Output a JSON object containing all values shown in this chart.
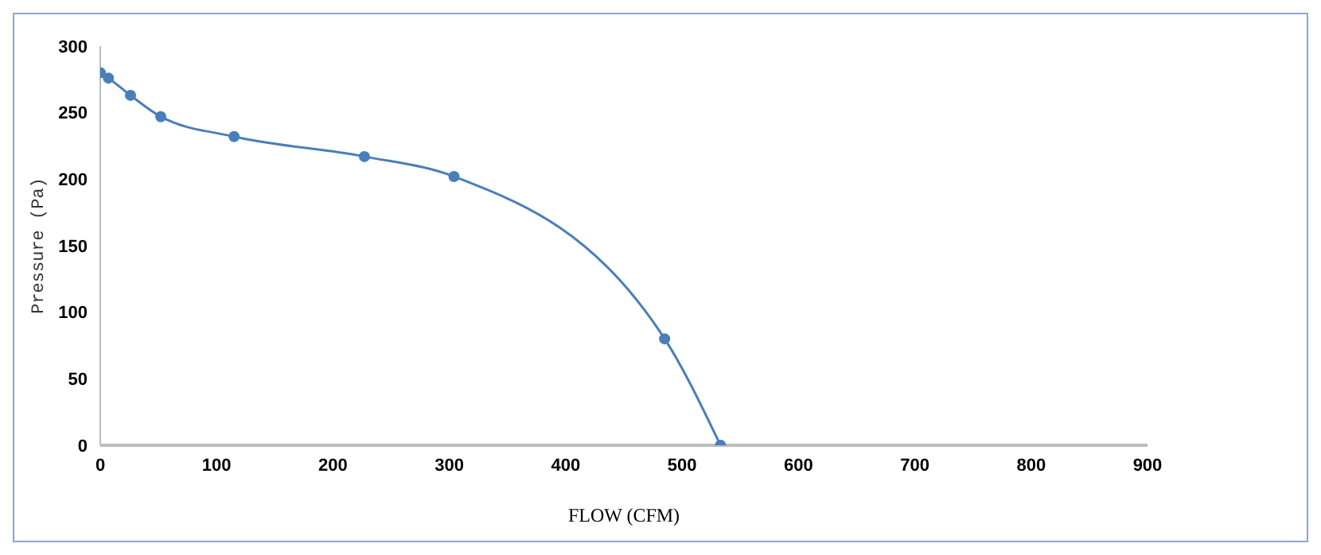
{
  "chart_data": {
    "type": "line",
    "xlabel": "FLOW (CFM)",
    "ylabel": "Pressure (Pa)",
    "x": [
      0,
      7,
      26,
      52,
      115,
      227,
      304,
      485,
      533
    ],
    "series": [
      {
        "color": "#4a7ebb",
        "values": [
          280,
          276,
          263,
          247,
          232,
          217,
          202,
          80,
          0
        ]
      }
    ],
    "xlim": [
      0,
      900
    ],
    "xticks": [
      0,
      100,
      200,
      300,
      400,
      500,
      600,
      700,
      800,
      900
    ],
    "ylim": [
      0,
      300
    ],
    "yticks": [
      0,
      50,
      100,
      150,
      200,
      250,
      300
    ],
    "grid": false,
    "legend": false,
    "marker": "circle",
    "line_style": "solid"
  }
}
